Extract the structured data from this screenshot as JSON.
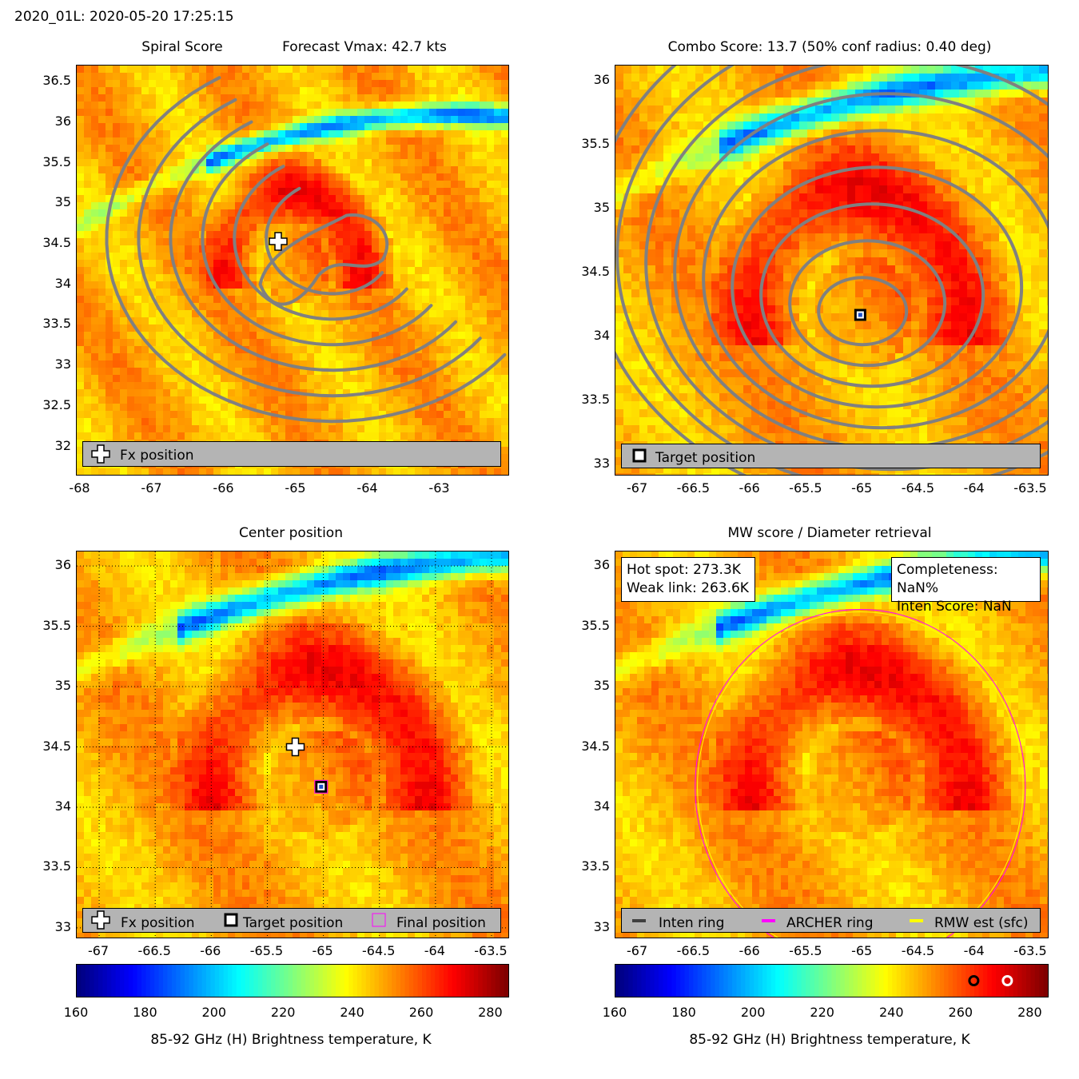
{
  "header": {
    "title": "2020_01L: 2020-05-20 17:25:15"
  },
  "colors": {
    "colormap": "jet",
    "contour": "#808080",
    "legend_bg": "#b4b4b4",
    "archer_ring": "#ff00ff",
    "rmw_ring": "#ffff00",
    "inten_ring": "#404040"
  },
  "chart_data": [
    {
      "panel": "top-left",
      "type": "heatmap",
      "title": "Spiral Score",
      "subtitle": "Forecast Vmax: 42.7 kts",
      "x_ticks": [
        "-68",
        "-67",
        "-66",
        "-65",
        "-64",
        "-63"
      ],
      "y_ticks": [
        "36.5",
        "36",
        "35.5",
        "35",
        "34.5",
        "34",
        "33.5",
        "33",
        "32.5",
        "32"
      ],
      "xlim": [
        -68.05,
        -62.05
      ],
      "ylim": [
        31.65,
        36.7
      ],
      "markers": [
        {
          "type": "plus",
          "name": "Fx position",
          "lon": -65.25,
          "lat": 34.53
        }
      ],
      "legend": [
        "Fx position"
      ],
      "overlay": "spiral contours"
    },
    {
      "panel": "top-right",
      "type": "heatmap",
      "title": "Combo Score: 13.7  (50% conf radius: 0.40 deg)",
      "x_ticks": [
        "-67",
        "-66.5",
        "-66",
        "-65.5",
        "-65",
        "-64.5",
        "-64",
        "-63.5"
      ],
      "y_ticks": [
        "36",
        "35.5",
        "35",
        "34.5",
        "34",
        "33.5",
        "33"
      ],
      "xlim": [
        -67.2,
        -63.35
      ],
      "ylim": [
        32.92,
        36.12
      ],
      "markers": [
        {
          "type": "square",
          "name": "Target position",
          "lon": -65.02,
          "lat": 34.17
        }
      ],
      "legend": [
        "Target position"
      ],
      "overlay": "combo score contours"
    },
    {
      "panel": "bottom-left",
      "type": "heatmap",
      "title": "Center position",
      "x_ticks": [
        "-67",
        "-66.5",
        "-66",
        "-65.5",
        "-65",
        "-64.5",
        "-64",
        "-63.5"
      ],
      "y_ticks": [
        "36",
        "35.5",
        "35",
        "34.5",
        "34",
        "33.5",
        "33"
      ],
      "xlim": [
        -67.2,
        -63.35
      ],
      "ylim": [
        32.92,
        36.12
      ],
      "markers": [
        {
          "type": "plus",
          "name": "Fx position",
          "lon": -65.25,
          "lat": 34.5
        },
        {
          "type": "square",
          "name": "Target position",
          "lon": -65.02,
          "lat": 34.17
        },
        {
          "type": "square-small",
          "name": "Final position",
          "lon": -65.02,
          "lat": 34.17
        }
      ],
      "legend": [
        "Fx position",
        "Target position",
        "Final position"
      ],
      "grid": true
    },
    {
      "panel": "bottom-right",
      "type": "heatmap",
      "title": "MW score / Diameter retrieval",
      "x_ticks": [
        "-67",
        "-66.5",
        "-66",
        "-65.5",
        "-65",
        "-64.5",
        "-64",
        "-63.5"
      ],
      "y_ticks": [
        "36",
        "35.5",
        "35",
        "34.5",
        "34",
        "33.5",
        "33"
      ],
      "xlim": [
        -67.2,
        -63.35
      ],
      "ylim": [
        32.92,
        36.12
      ],
      "info_left": [
        "Hot spot: 273.3K",
        "Weak link: 263.6K"
      ],
      "info_right": [
        "Completeness: NaN%",
        "Inten Score: NaN"
      ],
      "hot_spot_k": 273.3,
      "weak_link_k": 263.6,
      "legend": [
        "Inten ring",
        "ARCHER ring",
        "RMW est (sfc)"
      ],
      "rings": [
        {
          "name": "ARCHER ring",
          "color": "#ff00ff",
          "lon": -65.02,
          "lat": 34.17,
          "radius_deg": 1.47
        },
        {
          "name": "RMW est (sfc)",
          "color": "#ffff00",
          "lon": -65.02,
          "lat": 34.17,
          "radius_deg": 1.45
        }
      ]
    }
  ],
  "colorbars": [
    {
      "ticks": [
        "160",
        "180",
        "200",
        "220",
        "240",
        "260",
        "280"
      ],
      "range": [
        160,
        285
      ],
      "label": "85-92 GHz (H) Brightness temperature, K"
    },
    {
      "ticks": [
        "160",
        "180",
        "200",
        "220",
        "240",
        "260",
        "280"
      ],
      "range": [
        160,
        285
      ],
      "label": "85-92 GHz (H) Brightness temperature, K",
      "marks": [
        {
          "name": "weak-link-mark",
          "value": 263.6,
          "color": "#000000"
        },
        {
          "name": "hot-spot-mark",
          "value": 273.3,
          "color": "#ffffff"
        }
      ]
    }
  ]
}
